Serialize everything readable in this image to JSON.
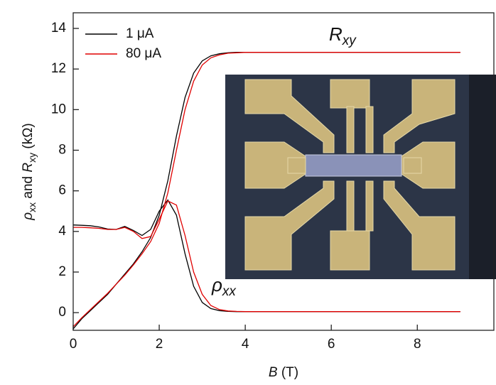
{
  "chart_data": {
    "type": "line",
    "x": [
      0,
      0.2,
      0.4,
      0.6,
      0.8,
      1.0,
      1.2,
      1.4,
      1.6,
      1.8,
      2.0,
      2.2,
      2.4,
      2.6,
      2.8,
      3.0,
      3.2,
      3.4,
      3.6,
      3.8,
      4.0,
      5,
      6,
      7,
      8,
      9
    ],
    "series": [
      {
        "name": "1 μA",
        "color": "#000000",
        "R_xy": [
          -0.8,
          -0.3,
          0.1,
          0.5,
          0.9,
          1.4,
          1.9,
          2.4,
          3.0,
          3.7,
          4.8,
          6.5,
          8.7,
          10.6,
          11.8,
          12.4,
          12.65,
          12.75,
          12.8,
          12.82,
          12.82,
          12.82,
          12.82,
          12.82,
          12.82,
          12.82
        ],
        "rho_xx": [
          4.32,
          4.3,
          4.28,
          4.22,
          4.12,
          4.1,
          4.25,
          4.05,
          3.8,
          4.1,
          5.0,
          5.55,
          4.8,
          2.9,
          1.3,
          0.5,
          0.2,
          0.1,
          0.06,
          0.05,
          0.05,
          0.05,
          0.05,
          0.05,
          0.05,
          0.05
        ]
      },
      {
        "name": "80 μA",
        "color": "#e00000",
        "R_xy": [
          -0.7,
          -0.25,
          0.15,
          0.55,
          0.95,
          1.4,
          1.85,
          2.35,
          2.9,
          3.5,
          4.4,
          5.9,
          8.0,
          10.0,
          11.4,
          12.2,
          12.55,
          12.7,
          12.78,
          12.8,
          12.82,
          12.82,
          12.82,
          12.82,
          12.82,
          12.82
        ],
        "rho_xx": [
          4.2,
          4.2,
          4.18,
          4.15,
          4.1,
          4.1,
          4.2,
          4.0,
          3.65,
          3.75,
          4.6,
          5.5,
          5.3,
          3.8,
          2.0,
          0.9,
          0.35,
          0.15,
          0.08,
          0.06,
          0.05,
          0.05,
          0.05,
          0.05,
          0.05,
          0.05
        ]
      }
    ],
    "xlim": [
      0,
      9.78
    ],
    "xticks": [
      0,
      2,
      4,
      6,
      8
    ],
    "ylim": [
      -0.87,
      14.77
    ],
    "yticks": [
      0,
      2,
      4,
      6,
      8,
      10,
      12,
      14
    ],
    "xlabel": [
      "B",
      " (T)"
    ],
    "ylabel": [
      "ρ",
      "xx",
      " and ",
      "R",
      "xy",
      " (kΩ)"
    ],
    "annotations": [
      {
        "symbol": "R",
        "subscript": "xy"
      },
      {
        "symbol": "ρ",
        "subscript": "xx"
      }
    ],
    "legend": "upper left"
  }
}
